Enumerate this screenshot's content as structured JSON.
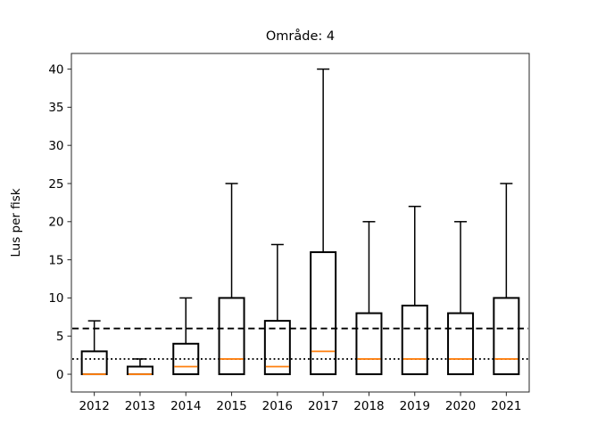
{
  "figure": {
    "title": "Område: 4",
    "ylabel": "Lus per fisk"
  },
  "chart_data": {
    "type": "boxplot",
    "title": "Område: 4",
    "xlabel": "",
    "ylabel": "Lus per fisk",
    "categories": [
      "2012",
      "2013",
      "2014",
      "2015",
      "2016",
      "2017",
      "2018",
      "2019",
      "2020",
      "2021"
    ],
    "yticks": [
      0,
      5,
      10,
      15,
      20,
      25,
      30,
      35,
      40
    ],
    "ylim": [
      -2.33,
      42.05
    ],
    "grid": false,
    "legend": false,
    "boxes": [
      {
        "category": "2012",
        "whisker_low": 0,
        "q1": 0,
        "median": 0,
        "q3": 3,
        "whisker_high": 7
      },
      {
        "category": "2013",
        "whisker_low": 0,
        "q1": 0,
        "median": 0,
        "q3": 1,
        "whisker_high": 2
      },
      {
        "category": "2014",
        "whisker_low": 0,
        "q1": 0,
        "median": 1,
        "q3": 4,
        "whisker_high": 10
      },
      {
        "category": "2015",
        "whisker_low": 0,
        "q1": 0,
        "median": 2,
        "q3": 10,
        "whisker_high": 25
      },
      {
        "category": "2016",
        "whisker_low": 0,
        "q1": 0,
        "median": 1,
        "q3": 7,
        "whisker_high": 17
      },
      {
        "category": "2017",
        "whisker_low": 0,
        "q1": 0,
        "median": 3,
        "q3": 16,
        "whisker_high": 40
      },
      {
        "category": "2018",
        "whisker_low": 0,
        "q1": 0,
        "median": 2,
        "q3": 8,
        "whisker_high": 20
      },
      {
        "category": "2019",
        "whisker_low": 0,
        "q1": 0,
        "median": 2,
        "q3": 9,
        "whisker_high": 22
      },
      {
        "category": "2020",
        "whisker_low": 0,
        "q1": 0,
        "median": 2,
        "q3": 8,
        "whisker_high": 20
      },
      {
        "category": "2021",
        "whisker_low": 0,
        "q1": 0,
        "median": 2,
        "q3": 10,
        "whisker_high": 25
      }
    ],
    "reference_lines": [
      {
        "y": 6,
        "style": "dashed",
        "color": "#000000"
      },
      {
        "y": 2,
        "style": "dotted",
        "color": "#000000"
      }
    ],
    "colors": {
      "box": "#000000",
      "median": "#ff7f0e",
      "axis": "#262626",
      "background": "#ffffff"
    }
  }
}
